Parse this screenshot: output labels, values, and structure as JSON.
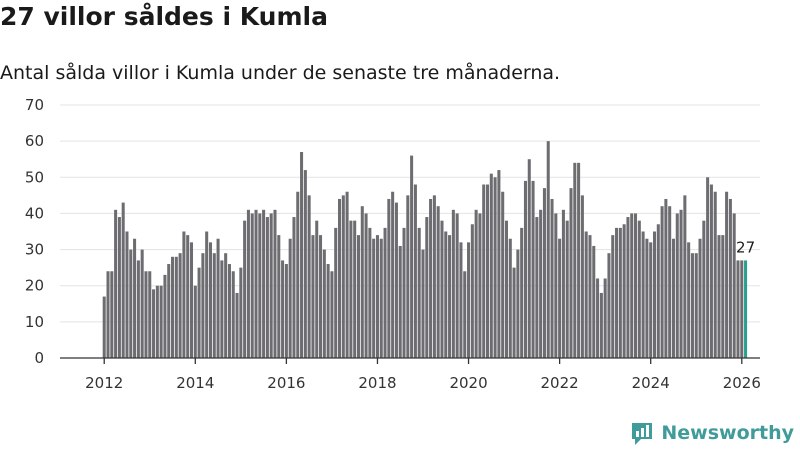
{
  "header": {
    "title": "27 villor såldes i Kumla",
    "subtitle": "Antal sålda villor i Kumla under de senaste tre månaderna."
  },
  "brand": {
    "name": "Newsworthy",
    "icon": "bar-chart-logo-icon"
  },
  "colors": {
    "bar": "#6d6c70",
    "highlight": "#2a9d8f",
    "axis": "#333333",
    "brand": "#3f9c9a"
  },
  "chart_data": {
    "type": "bar",
    "title": "27 villor såldes i Kumla",
    "subtitle": "Antal sålda villor i Kumla under de senaste tre månaderna.",
    "xlabel": "",
    "ylabel": "",
    "ylim": [
      0,
      70
    ],
    "y_ticks": [
      "0",
      "10",
      "20",
      "30",
      "40",
      "50",
      "60",
      "70"
    ],
    "x_ticks": [
      "2012",
      "2014",
      "2016",
      "2018",
      "2020",
      "2022",
      "2024",
      "2026"
    ],
    "x_range": [
      2011.6,
      2026.4
    ],
    "start_year": 2012,
    "grid": true,
    "legend": "none",
    "highlight_label": "27",
    "values": [
      17,
      24,
      24,
      41,
      39,
      43,
      35,
      30,
      33,
      27,
      30,
      24,
      24,
      19,
      20,
      20,
      23,
      26,
      28,
      28,
      29,
      35,
      34,
      32,
      20,
      25,
      29,
      35,
      32,
      29,
      33,
      27,
      29,
      26,
      24,
      18,
      25,
      38,
      41,
      40,
      41,
      40,
      41,
      39,
      40,
      41,
      34,
      27,
      26,
      33,
      39,
      46,
      57,
      52,
      45,
      34,
      38,
      34,
      30,
      26,
      24,
      36,
      44,
      45,
      46,
      38,
      38,
      34,
      42,
      40,
      36,
      33,
      34,
      33,
      36,
      44,
      46,
      43,
      31,
      36,
      45,
      56,
      48,
      36,
      30,
      39,
      44,
      45,
      42,
      38,
      35,
      34,
      41,
      40,
      32,
      24,
      32,
      37,
      41,
      40,
      48,
      48,
      51,
      50,
      52,
      46,
      38,
      33,
      25,
      30,
      36,
      49,
      55,
      49,
      39,
      41,
      47,
      60,
      44,
      40,
      33,
      41,
      38,
      47,
      54,
      54,
      45,
      35,
      34,
      31,
      22,
      18,
      22,
      29,
      34,
      36,
      36,
      37,
      39,
      40,
      40,
      38,
      35,
      33,
      32,
      35,
      37,
      42,
      44,
      42,
      33,
      40,
      41,
      45,
      32,
      29,
      29,
      33,
      38,
      50,
      48,
      46,
      34,
      34,
      46,
      44,
      40,
      27,
      27,
      27
    ]
  }
}
